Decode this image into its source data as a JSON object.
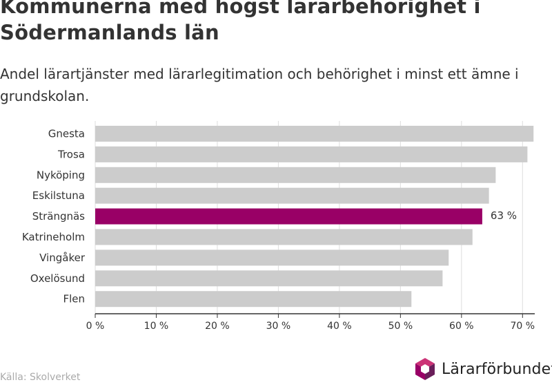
{
  "title": "Kommunerna med högst lärarbehörighet i Södermanlands län",
  "subtitle": "Andel lärartjänster med lärarlegitimation och behörighet i minst ett ämne i grundskolan.",
  "source": "Källa: Skolverket",
  "logo_text": "Lärarförbundet",
  "colors": {
    "bar": "#cccccc",
    "highlight": "#990066",
    "grid": "#dddddd",
    "axis": "#333333",
    "logo_pink": "#cc3377",
    "logo_purple": "#990066",
    "logo_dark": "#6a1f5a"
  },
  "chart_data": {
    "type": "bar",
    "orientation": "horizontal",
    "categories": [
      "Gnesta",
      "Trosa",
      "Nyköping",
      "Eskilstuna",
      "Strängnäs",
      "Katrineholm",
      "Vingåker",
      "Oxelösund",
      "Flen"
    ],
    "values": [
      71.8,
      70.8,
      65.6,
      64.5,
      63.4,
      61.8,
      57.9,
      56.9,
      51.8
    ],
    "highlight_index": 4,
    "highlight_label": "63 %",
    "xlim": [
      0,
      72
    ],
    "xticks": [
      0,
      10,
      20,
      30,
      40,
      50,
      60,
      70
    ],
    "xtick_labels": [
      "0 %",
      "10 %",
      "20 %",
      "30 %",
      "40 %",
      "50 %",
      "60 %",
      "70 %"
    ],
    "grid": true
  }
}
